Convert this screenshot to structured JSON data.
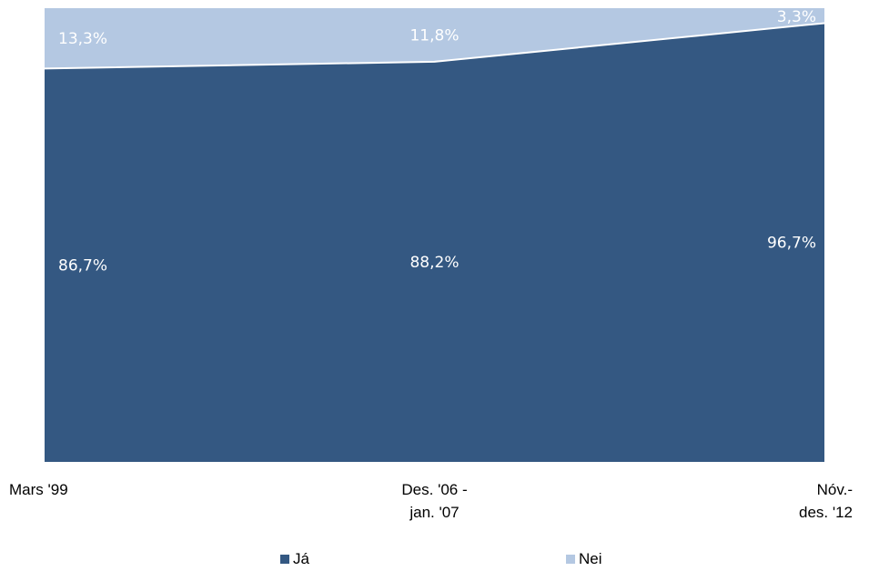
{
  "chart_data": {
    "type": "area",
    "stacked": "percent",
    "categories": [
      [
        "Mars '99"
      ],
      [
        "Des. '06 -",
        "jan. '07"
      ],
      [
        "Nóv.-",
        "des. '12"
      ]
    ],
    "series": [
      {
        "name": "Já",
        "values": [
          86.7,
          88.2,
          96.7
        ],
        "labels": [
          "86,7%",
          "88,2%",
          "96,7%"
        ],
        "color": "#345882"
      },
      {
        "name": "Nei",
        "values": [
          13.3,
          11.8,
          3.3
        ],
        "labels": [
          "13,3%",
          "11,8%",
          "3,3%"
        ],
        "color": "#b4c8e2"
      }
    ],
    "ylim": [
      0,
      100
    ],
    "grid": false,
    "legend": "bottom",
    "colors": {
      "separator": "#ffffff",
      "label_text": "#ffffff"
    }
  }
}
